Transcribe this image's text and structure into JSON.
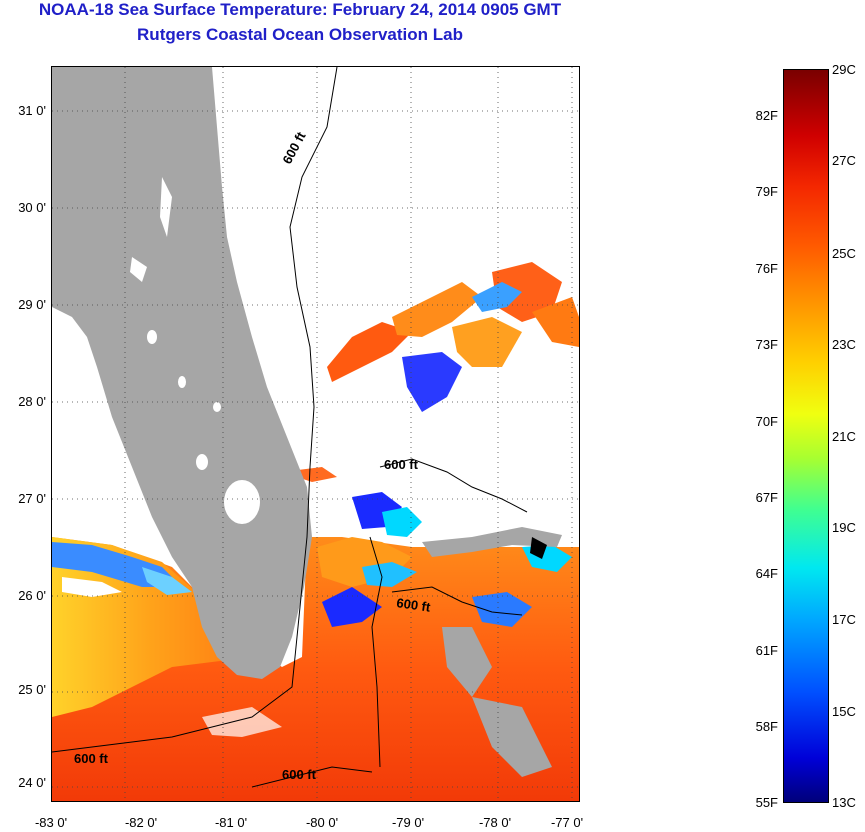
{
  "header": {
    "title_line1": "NOAA-18 Sea Surface Temperature:  February 24, 2014 0905 GMT",
    "title_line2": "Rutgers Coastal Ocean Observation Lab"
  },
  "map": {
    "latitude_labels": [
      "31 0'",
      "30 0'",
      "29 0'",
      "28 0'",
      "27 0'",
      "26 0'",
      "25 0'",
      "24 0'"
    ],
    "longitude_labels": [
      "-83 0'",
      "-82 0'",
      "-81 0'",
      "-80 0'",
      "-79 0'",
      "-78 0'",
      "-77 0'"
    ],
    "isobath_labels": [
      "600 ft",
      "600 ft",
      "600 ft",
      "600 ft",
      "600 ft"
    ],
    "colors": {
      "land": "#a6a6a6",
      "no_data": "#ffffff",
      "isobath": "#000000"
    }
  },
  "colorbar": {
    "fahrenheit_labels": [
      "82F",
      "79F",
      "76F",
      "73F",
      "70F",
      "67F",
      "64F",
      "61F",
      "58F",
      "55F"
    ],
    "celsius_labels": [
      "29C",
      "27C",
      "25C",
      "23C",
      "21C",
      "19C",
      "17C",
      "15C",
      "13C"
    ]
  }
}
